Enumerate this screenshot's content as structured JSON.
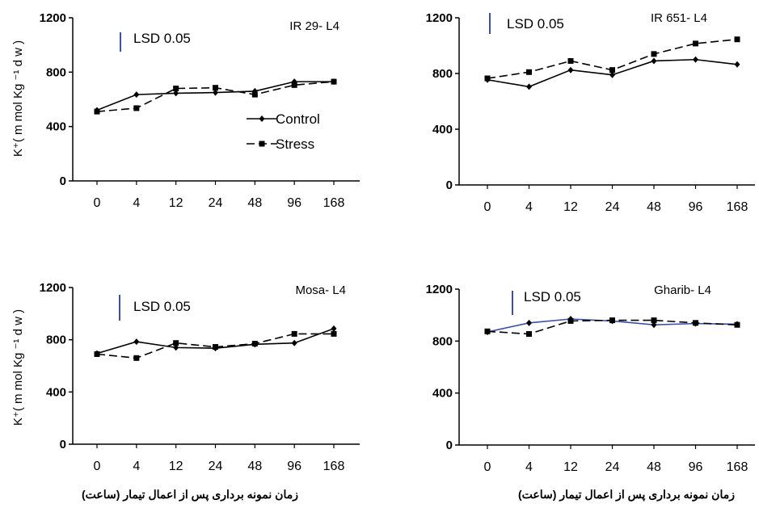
{
  "chart_data": [
    {
      "type": "line",
      "title": "IR 29- L4",
      "ylabel": "K⁺( m mol Kg ⁻¹ d w )",
      "xlabel": "",
      "categories": [
        "0",
        "4",
        "12",
        "24",
        "48",
        "96",
        "168"
      ],
      "ylim": [
        0,
        1200
      ],
      "yticks": [
        "0",
        "400",
        "800",
        "1200"
      ],
      "lsd_label": "LSD 0.05",
      "lsd_color": "#3a4fb0",
      "legend": {
        "placement": "right",
        "entries": [
          "Control",
          "Stress"
        ]
      },
      "series": [
        {
          "name": "Control",
          "marker": "diamond",
          "dash": "solid",
          "color": "#000000",
          "values": [
            520,
            635,
            645,
            650,
            660,
            730,
            730
          ]
        },
        {
          "name": "Stress",
          "marker": "square",
          "dash": "dashed",
          "color": "#000000",
          "values": [
            510,
            535,
            680,
            685,
            635,
            705,
            730
          ]
        }
      ]
    },
    {
      "type": "line",
      "title": "IR 651- L4",
      "ylabel": "",
      "xlabel": "",
      "categories": [
        "0",
        "4",
        "12",
        "24",
        "48",
        "96",
        "168"
      ],
      "ylim": [
        0,
        1200
      ],
      "yticks": [
        "0",
        "400",
        "800",
        "1200"
      ],
      "lsd_label": "LSD 0.05",
      "lsd_color": "#3a4fb0",
      "series": [
        {
          "name": "Control",
          "marker": "diamond",
          "dash": "solid",
          "color": "#000000",
          "values": [
            755,
            705,
            825,
            790,
            890,
            900,
            865
          ]
        },
        {
          "name": "Stress",
          "marker": "square",
          "dash": "dashed",
          "color": "#000000",
          "values": [
            765,
            810,
            890,
            825,
            940,
            1015,
            1045
          ]
        }
      ]
    },
    {
      "type": "line",
      "title": "Mosa- L4",
      "ylabel": "K⁺( m mol Kg ⁻¹ d w )",
      "xlabel": "زمان نمونه برداری پس از اعمال تیمار (ساعت)",
      "categories": [
        "0",
        "4",
        "12",
        "24",
        "48",
        "96",
        "168"
      ],
      "ylim": [
        0,
        1200
      ],
      "yticks": [
        "0",
        "400",
        "800",
        "1200"
      ],
      "lsd_label": "LSD 0.05",
      "lsd_color": "#3a4fb0",
      "series": [
        {
          "name": "Control",
          "marker": "diamond",
          "dash": "solid",
          "color": "#000000",
          "values": [
            695,
            785,
            740,
            735,
            765,
            775,
            885
          ]
        },
        {
          "name": "Stress",
          "marker": "square",
          "dash": "dashed",
          "color": "#000000",
          "values": [
            690,
            660,
            775,
            745,
            770,
            845,
            845
          ]
        }
      ]
    },
    {
      "type": "line",
      "title": "Gharib- L4",
      "ylabel": "",
      "xlabel": "زمان نمونه برداری پس از اعمال تیمار (ساعت)",
      "categories": [
        "0",
        "4",
        "12",
        "24",
        "48",
        "96",
        "168"
      ],
      "ylim": [
        0,
        1200
      ],
      "yticks": [
        "0",
        "400",
        "800",
        "1200"
      ],
      "lsd_label": "LSD 0.05",
      "lsd_color": "#3a4fb0",
      "series": [
        {
          "name": "Control",
          "marker": "diamond",
          "dash": "solid",
          "color": "#3a4fb0",
          "values": [
            870,
            940,
            970,
            955,
            925,
            935,
            930
          ]
        },
        {
          "name": "Stress",
          "marker": "square",
          "dash": "dashed",
          "color": "#000000",
          "values": [
            875,
            855,
            955,
            960,
            960,
            940,
            925
          ]
        }
      ]
    }
  ]
}
